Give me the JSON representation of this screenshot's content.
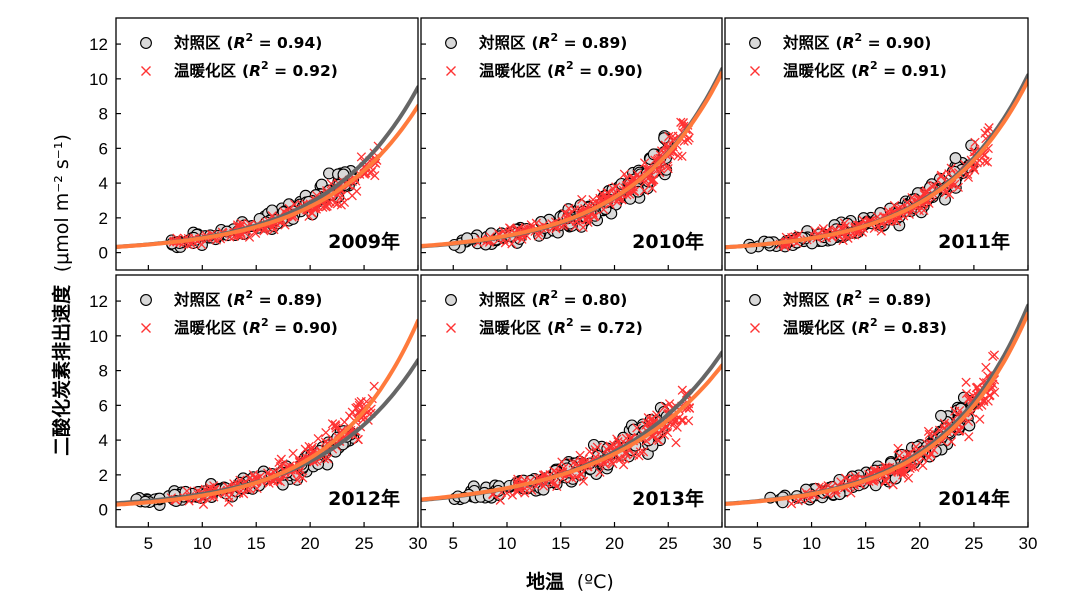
{
  "figure": {
    "xlabel_text": "地温",
    "xlabel_unit": "(ºC)",
    "ylabel_text": "二酸化炭素排出速度",
    "ylabel_unit": "(μmol m⁻² s⁻¹)"
  },
  "chart_data": [
    {
      "type": "scatter",
      "year_label": "2009年",
      "xlim": [
        2,
        30
      ],
      "ylim": [
        -1,
        13.5
      ],
      "xticks": [
        5,
        10,
        15,
        20,
        25,
        30
      ],
      "yticks": [
        0,
        2,
        4,
        6,
        8,
        10,
        12
      ],
      "series": [
        {
          "name": "対照区",
          "r2": "0.94",
          "marker": "circle",
          "color": "#d9d9d9",
          "curve_color": "#666666",
          "fit": {
            "a": 0.26,
            "b": 0.12
          },
          "x_range": [
            7,
            24
          ],
          "points": 150,
          "spread": 0.9
        },
        {
          "name": "温暖化区",
          "r2": "0.92",
          "marker": "x",
          "color": "#ff3333",
          "curve_color": "#ff7a3c",
          "fit": {
            "a": 0.26,
            "b": 0.116
          },
          "x_range": [
            7,
            26.5
          ],
          "points": 170,
          "spread": 1.0
        }
      ]
    },
    {
      "type": "scatter",
      "year_label": "2010年",
      "xlim": [
        2,
        30
      ],
      "ylim": [
        -1,
        13.5
      ],
      "xticks": [
        5,
        10,
        15,
        20,
        25,
        30
      ],
      "yticks": [
        0,
        2,
        4,
        6,
        8,
        10,
        12
      ],
      "series": [
        {
          "name": "対照区",
          "r2": "0.89",
          "marker": "circle",
          "color": "#d9d9d9",
          "curve_color": "#666666",
          "fit": {
            "a": 0.28,
            "b": 0.121
          },
          "x_range": [
            5,
            25
          ],
          "points": 160,
          "spread": 1.1
        },
        {
          "name": "温暖化区",
          "r2": "0.90",
          "marker": "x",
          "color": "#ff3333",
          "curve_color": "#ff7a3c",
          "fit": {
            "a": 0.3,
            "b": 0.118
          },
          "x_range": [
            7,
            27
          ],
          "points": 190,
          "spread": 1.0
        }
      ]
    },
    {
      "type": "scatter",
      "year_label": "2011年",
      "xlim": [
        2,
        30
      ],
      "ylim": [
        -1,
        13.5
      ],
      "xticks": [
        5,
        10,
        15,
        20,
        25,
        30
      ],
      "yticks": [
        0,
        2,
        4,
        6,
        8,
        10,
        12
      ],
      "series": [
        {
          "name": "対照区",
          "r2": "0.90",
          "marker": "circle",
          "color": "#d9d9d9",
          "curve_color": "#666666",
          "fit": {
            "a": 0.24,
            "b": 0.125
          },
          "x_range": [
            4,
            25
          ],
          "points": 160,
          "spread": 1.0
        },
        {
          "name": "温暖化区",
          "r2": "0.91",
          "marker": "x",
          "color": "#ff3333",
          "curve_color": "#ff7a3c",
          "fit": {
            "a": 0.24,
            "b": 0.124
          },
          "x_range": [
            7,
            26.5
          ],
          "points": 180,
          "spread": 1.0
        }
      ]
    },
    {
      "type": "scatter",
      "year_label": "2012年",
      "xlim": [
        2,
        30
      ],
      "ylim": [
        -1,
        13.5
      ],
      "xticks": [
        5,
        10,
        15,
        20,
        25,
        30
      ],
      "yticks": [
        0,
        2,
        4,
        6,
        8,
        10,
        12
      ],
      "series": [
        {
          "name": "対照区",
          "r2": "0.89",
          "marker": "circle",
          "color": "#d9d9d9",
          "curve_color": "#666666",
          "fit": {
            "a": 0.29,
            "b": 0.113
          },
          "x_range": [
            3.5,
            24
          ],
          "points": 160,
          "spread": 0.9
        },
        {
          "name": "温暖化区",
          "r2": "0.90",
          "marker": "x",
          "color": "#ff3333",
          "curve_color": "#ff7a3c",
          "fit": {
            "a": 0.22,
            "b": 0.13
          },
          "x_range": [
            7,
            26
          ],
          "points": 180,
          "spread": 1.1
        }
      ]
    },
    {
      "type": "scatter",
      "year_label": "2013年",
      "xlim": [
        2,
        30
      ],
      "ylim": [
        -1,
        13.5
      ],
      "xticks": [
        5,
        10,
        15,
        20,
        25,
        30
      ],
      "yticks": [
        0,
        2,
        4,
        6,
        8,
        10,
        12
      ],
      "series": [
        {
          "name": "対照区",
          "r2": "0.80",
          "marker": "circle",
          "color": "#d9d9d9",
          "curve_color": "#666666",
          "fit": {
            "a": 0.45,
            "b": 0.1
          },
          "x_range": [
            5,
            25
          ],
          "points": 160,
          "spread": 1.2
        },
        {
          "name": "温暖化区",
          "r2": "0.72",
          "marker": "x",
          "color": "#ff3333",
          "curve_color": "#ff7a3c",
          "fit": {
            "a": 0.48,
            "b": 0.095
          },
          "x_range": [
            8,
            27
          ],
          "points": 180,
          "spread": 1.2
        }
      ]
    },
    {
      "type": "scatter",
      "year_label": "2014年",
      "xlim": [
        2,
        30
      ],
      "ylim": [
        -1,
        13.5
      ],
      "xticks": [
        5,
        10,
        15,
        20,
        25,
        30
      ],
      "yticks": [
        0,
        2,
        4,
        6,
        8,
        10,
        12
      ],
      "series": [
        {
          "name": "対照区",
          "r2": "0.89",
          "marker": "circle",
          "color": "#d9d9d9",
          "curve_color": "#666666",
          "fit": {
            "a": 0.26,
            "b": 0.127
          },
          "x_range": [
            6,
            25
          ],
          "points": 160,
          "spread": 1.1
        },
        {
          "name": "温暖化区",
          "r2": "0.83",
          "marker": "x",
          "color": "#ff3333",
          "curve_color": "#ff7a3c",
          "fit": {
            "a": 0.25,
            "b": 0.127
          },
          "x_range": [
            8,
            27
          ],
          "points": 180,
          "spread": 1.2
        }
      ]
    }
  ]
}
